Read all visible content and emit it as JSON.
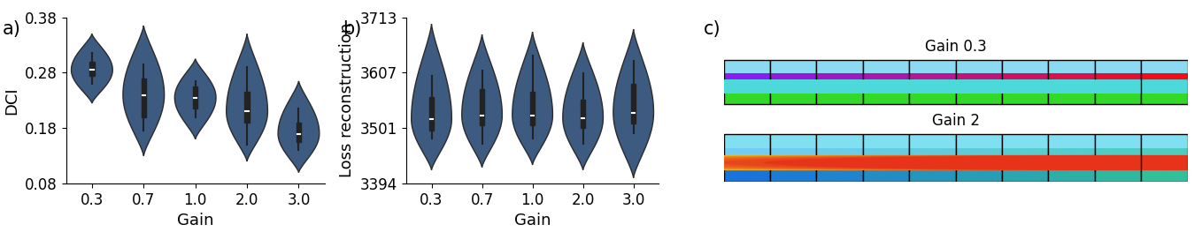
{
  "chart_data": [
    {
      "type": "violin",
      "panel_label": "a)",
      "x_label": "Gain",
      "y_label": "DCI",
      "categories": [
        "0.3",
        "0.7",
        "1.0",
        "2.0",
        "3.0"
      ],
      "color": "#3d5a80",
      "ylim": [
        0.08,
        0.38
      ],
      "yticks": [
        0.08,
        0.18,
        0.28,
        0.38
      ],
      "distributions": [
        {
          "low": 0.225,
          "whisker_low": 0.26,
          "q1": 0.275,
          "median": 0.285,
          "q3": 0.3,
          "whisker_high": 0.315,
          "high": 0.35
        },
        {
          "low": 0.13,
          "whisker_low": 0.175,
          "q1": 0.2,
          "median": 0.24,
          "q3": 0.27,
          "whisker_high": 0.295,
          "high": 0.365
        },
        {
          "low": 0.16,
          "whisker_low": 0.2,
          "q1": 0.215,
          "median": 0.235,
          "q3": 0.255,
          "whisker_high": 0.265,
          "high": 0.305
        },
        {
          "low": 0.12,
          "whisker_low": 0.15,
          "q1": 0.19,
          "median": 0.21,
          "q3": 0.245,
          "whisker_high": 0.29,
          "high": 0.35
        },
        {
          "low": 0.1,
          "whisker_low": 0.14,
          "q1": 0.155,
          "median": 0.17,
          "q3": 0.19,
          "whisker_high": 0.215,
          "high": 0.265
        }
      ]
    },
    {
      "type": "violin",
      "panel_label": "b)",
      "x_label": "Gain",
      "y_label": "Loss reconstruction",
      "categories": [
        "0.3",
        "0.7",
        "1.0",
        "2.0",
        "3.0"
      ],
      "color": "#3d5a80",
      "ylim": [
        3394,
        3713
      ],
      "yticks": [
        3394,
        3501,
        3607,
        3713
      ],
      "distributions": [
        {
          "low": 3420,
          "whisker_low": 3480,
          "q1": 3495,
          "median": 3518,
          "q3": 3560,
          "whisker_high": 3600,
          "high": 3700
        },
        {
          "low": 3425,
          "whisker_low": 3470,
          "q1": 3505,
          "median": 3525,
          "q3": 3575,
          "whisker_high": 3610,
          "high": 3680
        },
        {
          "low": 3430,
          "whisker_low": 3480,
          "q1": 3505,
          "median": 3525,
          "q3": 3570,
          "whisker_high": 3640,
          "high": 3685
        },
        {
          "low": 3420,
          "whisker_low": 3470,
          "q1": 3500,
          "median": 3520,
          "q3": 3555,
          "whisker_high": 3605,
          "high": 3665
        },
        {
          "low": 3405,
          "whisker_low": 3490,
          "q1": 3510,
          "median": 3530,
          "q3": 3585,
          "whisker_high": 3630,
          "high": 3690
        }
      ]
    }
  ],
  "image_panel": {
    "panel_label": "c)",
    "rows": [
      {
        "title": "Gain 0.3"
      },
      {
        "title": "Gain 2"
      }
    ]
  }
}
